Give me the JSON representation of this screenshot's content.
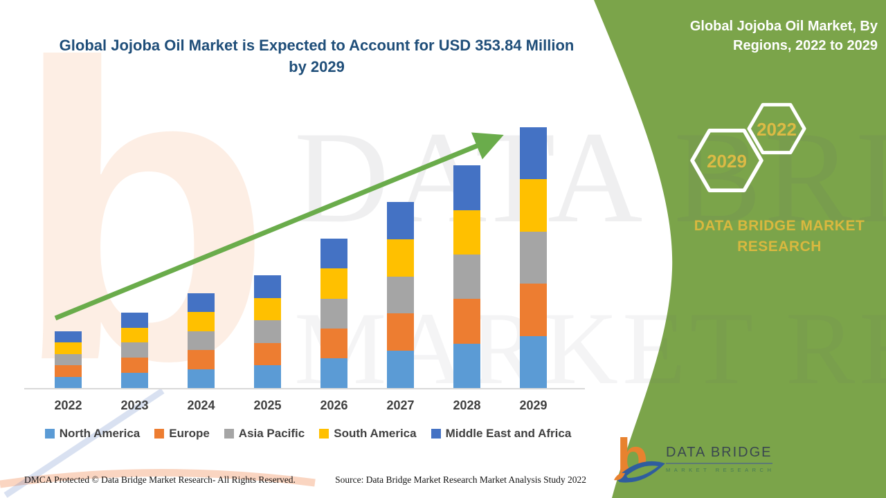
{
  "page": {
    "background": "#ffffff"
  },
  "header": {
    "title_line1": "Global Jojoba Oil Market is Expected to Account for USD 353.84 Million",
    "title_line2": "by 2029",
    "title_color": "#1F4E79"
  },
  "side_panel": {
    "background": "#7BA44A",
    "title_line1": "Global Jojoba Oil Market, By",
    "title_line2": "Regions, 2022 to 2029",
    "hexagon_large_label": "2029",
    "hexagon_small_label": "2022",
    "brand_line1": "DATA BRIDGE MARKET",
    "brand_line2": "RESEARCH",
    "gold_color": "#D9B83F"
  },
  "chart_data": {
    "type": "bar",
    "stacked": true,
    "title": "Global Jojoba Oil Market is Expected to Account for USD 353.84 Million by 2029",
    "unit": "USD Million",
    "xlabel": "",
    "ylabel": "",
    "y_axis": "hidden",
    "grid": false,
    "legend_position": "bottom",
    "categories": [
      "2022",
      "2023",
      "2024",
      "2025",
      "2026",
      "2027",
      "2028",
      "2029"
    ],
    "series": [
      {
        "name": "North America",
        "color": "#5B9BD5",
        "values": [
          15.4,
          20.5,
          25.7,
          30.6,
          40.5,
          50.5,
          60.4,
          70.77
        ]
      },
      {
        "name": "Europe",
        "color": "#ED7D31",
        "values": [
          15.4,
          20.5,
          25.7,
          30.6,
          40.5,
          50.5,
          60.4,
          70.77
        ]
      },
      {
        "name": "Asia Pacific",
        "color": "#A5A5A5",
        "values": [
          15.4,
          20.5,
          25.7,
          30.6,
          40.5,
          50.5,
          60.4,
          70.77
        ]
      },
      {
        "name": "South America",
        "color": "#FFC000",
        "values": [
          15.4,
          20.5,
          25.7,
          30.6,
          40.5,
          50.5,
          60.4,
          70.77
        ]
      },
      {
        "name": "Middle East and Africa",
        "color": "#4472C4",
        "values": [
          15.4,
          20.5,
          25.7,
          30.6,
          40.5,
          50.5,
          60.4,
          70.77
        ]
      }
    ],
    "totals_estimated": [
      77.0,
      102.5,
      128.5,
      153.0,
      202.5,
      252.5,
      302.0,
      353.84
    ],
    "final_year_total_label": "353.84",
    "values_estimated_from_bar_heights": true,
    "trend_arrow": {
      "direction": "up",
      "color": "#6AAC4B"
    }
  },
  "footer": {
    "left": "DMCA Protected © Data Bridge Market Research- All Rights Reserved.",
    "right": "Source: Data Bridge Market Research Market Analysis Study 2022"
  },
  "logo": {
    "name": "DATA BRIDGE",
    "subtitle": "MARKET RESEARCH"
  },
  "watermark": {
    "letter": "b",
    "line1": "DATA BRIDGE",
    "line2": "MARKET RESEARCH"
  }
}
